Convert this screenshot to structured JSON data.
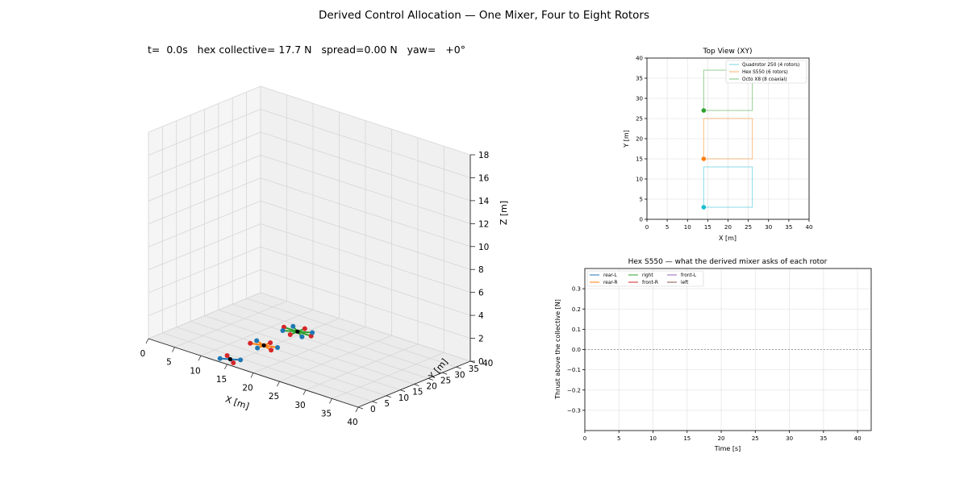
{
  "figure": {
    "suptitle": "Derived Control Allocation — One Mixer, Four to Eight Rotors",
    "status_text": "t=  0.0s   hex collective= 17.7 N   spread=0.00 N   yaw=   +0°"
  },
  "chart_data": [
    {
      "type": "scatter3d",
      "title": "",
      "xlabel": "X [m]",
      "ylabel": "Y [m]",
      "zlabel": "Z [m]",
      "xlim": [
        0,
        40
      ],
      "ylim": [
        0,
        40
      ],
      "zlim": [
        0,
        18
      ],
      "xticks": [
        "0",
        "5",
        "10",
        "15",
        "20",
        "25",
        "30",
        "35",
        "40"
      ],
      "yticks": [
        "0",
        "5",
        "10",
        "15",
        "20",
        "25",
        "30",
        "35",
        "40"
      ],
      "zticks": [
        "0",
        "2",
        "4",
        "6",
        "8",
        "10",
        "12",
        "14",
        "16",
        "18"
      ],
      "vehicles": [
        {
          "name": "Quadrotor 250 (4 rotors)",
          "center": [
            14,
            3,
            0
          ],
          "rotors": 4,
          "arm_length": 1.8,
          "arm_color": "#1f77b4"
        },
        {
          "name": "Hex S550 (6 rotors)",
          "center": [
            14,
            15,
            0
          ],
          "rotors": 6,
          "arm_length": 2.3,
          "arm_color": "#ff7f0e"
        },
        {
          "name": "Octo X8 (8 coaxial)",
          "center": [
            14,
            27,
            0
          ],
          "rotors": 8,
          "arm_length": 2.6,
          "arm_color": "#2ca02c"
        }
      ],
      "rotor_colors": {
        "front": "#d62728",
        "rear": "#1f77b4"
      }
    },
    {
      "type": "line",
      "title": "Top View (XY)",
      "xlabel": "X [m]",
      "ylabel": "Y [m]",
      "xlim": [
        0,
        40
      ],
      "ylim": [
        0,
        40
      ],
      "xticks": [
        "0",
        "5",
        "10",
        "15",
        "20",
        "25",
        "30",
        "35",
        "40"
      ],
      "yticks": [
        "0",
        "5",
        "10",
        "15",
        "20",
        "25",
        "30",
        "35",
        "40"
      ],
      "grid": true,
      "legend_position": "top-right",
      "series": [
        {
          "name": "Quadrotor 250 (4 rotors)",
          "color": "#17becf",
          "x": [
            14,
            14,
            26,
            26,
            14
          ],
          "y": [
            3,
            13,
            13,
            3,
            3
          ],
          "current": [
            14,
            3
          ]
        },
        {
          "name": "Hex S550 (6 rotors)",
          "color": "#ff7f0e",
          "x": [
            14,
            14,
            26,
            26,
            14
          ],
          "y": [
            15,
            25,
            25,
            15,
            15
          ],
          "current": [
            14,
            15
          ]
        },
        {
          "name": "Octo X8 (8 coaxial)",
          "color": "#2ca02c",
          "x": [
            14,
            14,
            26,
            26,
            14
          ],
          "y": [
            27,
            37,
            37,
            27,
            27
          ],
          "current": [
            14,
            27
          ]
        }
      ]
    },
    {
      "type": "line",
      "title": "Hex S550 — what the derived mixer asks of each rotor",
      "xlabel": "Time [s]",
      "ylabel": "Thrust above the collective [N]",
      "xlim": [
        0,
        42
      ],
      "ylim": [
        -0.4,
        0.4
      ],
      "xticks": [
        "0",
        "5",
        "10",
        "15",
        "20",
        "25",
        "30",
        "35",
        "40"
      ],
      "yticks": [
        "−0.3",
        "−0.2",
        "−0.1",
        "0.0",
        "0.1",
        "0.2",
        "0.3"
      ],
      "grid": true,
      "legend_position": "top-left",
      "reference_line": 0,
      "series": [
        {
          "name": "rear-L",
          "color": "#1f77b4",
          "values": []
        },
        {
          "name": "rear-R",
          "color": "#ff7f0e",
          "values": []
        },
        {
          "name": "right",
          "color": "#2ca02c",
          "values": []
        },
        {
          "name": "front-R",
          "color": "#d62728",
          "values": []
        },
        {
          "name": "front-L",
          "color": "#9467bd",
          "values": []
        },
        {
          "name": "left",
          "color": "#8c564b",
          "values": []
        }
      ]
    }
  ]
}
